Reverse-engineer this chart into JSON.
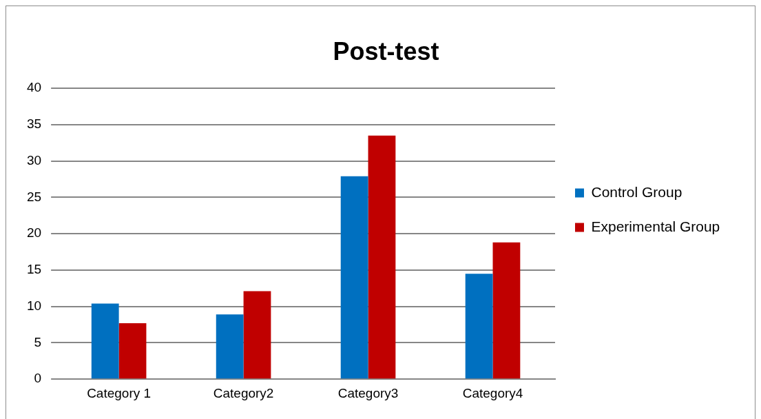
{
  "chart_data": {
    "type": "bar",
    "title": "Post-test",
    "categories": [
      "Category 1",
      "Category2",
      "Category3",
      "Category4"
    ],
    "series": [
      {
        "name": "Control Group",
        "color": "#0070c0",
        "values": [
          10.4,
          8.9,
          27.9,
          14.5
        ]
      },
      {
        "name": "Experimental Group",
        "color": "#c00000",
        "values": [
          7.7,
          12.1,
          33.5,
          18.8
        ]
      }
    ],
    "ylim": [
      0,
      40
    ],
    "yticks": [
      0,
      5,
      10,
      15,
      20,
      25,
      30,
      35,
      40
    ],
    "grid": "y",
    "legend": "right"
  }
}
